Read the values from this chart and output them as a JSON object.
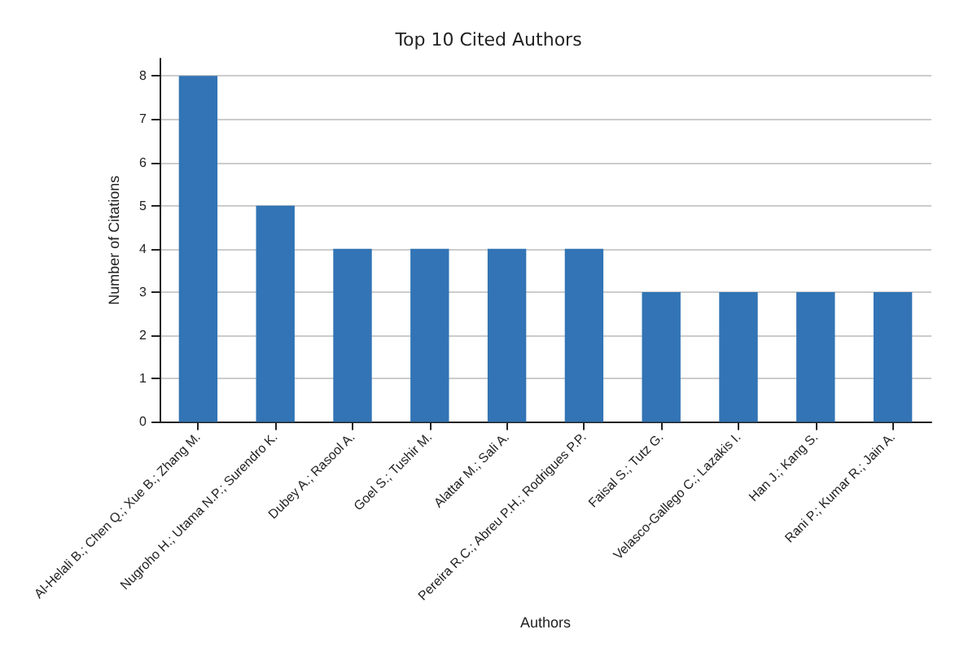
{
  "chart_data": {
    "type": "bar",
    "title": "Top 10 Cited Authors",
    "xlabel": "Authors",
    "ylabel": "Number of Citations",
    "categories": [
      "Al-Helali B.; Chen Q.; Xue B.; Zhang M.",
      "Nugroho H.; Utama N.P.; Surendro K.",
      "Dubey A.; Rasool A.",
      "Goel S.; Tushir M.",
      "Alattar M.; Sali A.",
      "Pereira R.C.; Abreu P.H.; Rodrigues P.P.",
      "Faisal S.; Tutz G.",
      "Velasco-Gallego C.; Lazakis I.",
      "Han J.; Kang S.",
      "Rani P.; Kumar R.; Jain A."
    ],
    "values": [
      8,
      5,
      4,
      4,
      4,
      4,
      3,
      3,
      3,
      3
    ],
    "color": "#3274b5",
    "ylim": [
      0,
      8.4
    ],
    "yticks": [
      0,
      1,
      2,
      3,
      4,
      5,
      6,
      7,
      8
    ],
    "grid": "y"
  }
}
